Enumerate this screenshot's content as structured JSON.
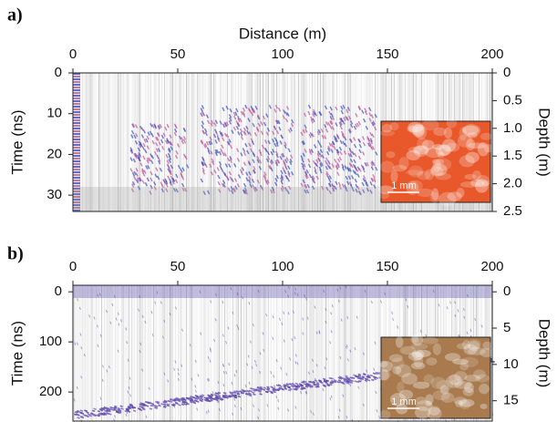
{
  "chart_data": [
    {
      "type": "radargram",
      "panel_label": "a)",
      "xlabel": "Distance (m)",
      "ylabel": "Time (ns)",
      "y2label": "Depth (m)",
      "xlim": [
        0,
        200
      ],
      "xticks": [
        0,
        50,
        100,
        150,
        200
      ],
      "ylim": [
        0,
        34
      ],
      "yticks": [
        0,
        10,
        20,
        30
      ],
      "y2lim": [
        0,
        2.5
      ],
      "y2ticks": [
        0,
        0.5,
        {
          "value": 1.0,
          "label": "1.0"
        },
        1.5,
        {
          "value": 2.0,
          "label": "2.0"
        },
        2.5
      ],
      "inset_scale": "1 mm",
      "inset_color": "#e8582a",
      "reflection_colors": [
        "#3b4fc4",
        "#c2559a"
      ]
    },
    {
      "type": "radargram",
      "panel_label": "b)",
      "ylabel": "Time (ns)",
      "y2label": "Depth (m)",
      "xlim": [
        0,
        200
      ],
      "xticks": [
        0,
        50,
        100,
        150,
        200
      ],
      "ylim": [
        -13,
        258
      ],
      "yticks": [
        0,
        100,
        200
      ],
      "y2lim": [
        -0.9,
        17.8
      ],
      "y2ticks": [
        0,
        5,
        10,
        15
      ],
      "inset_scale": "1 mm",
      "inset_color": "#a87a4e",
      "reflection_colors": [
        "#5a4aa8",
        "#7a62c0"
      ]
    }
  ]
}
